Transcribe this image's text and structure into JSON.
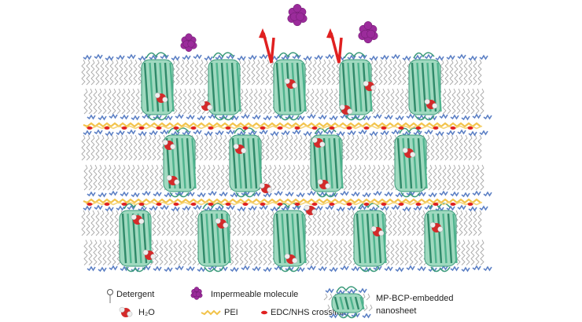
{
  "legend": {
    "detergent": "Detergent",
    "impermeable_molecule": "Impermeable molecule",
    "water": "H₂O",
    "pei": "PEI",
    "crosslink": "EDC/NHS crosslink",
    "nanosheet": [
      "MP-BCP-embedded",
      "nanosheet"
    ]
  }
}
